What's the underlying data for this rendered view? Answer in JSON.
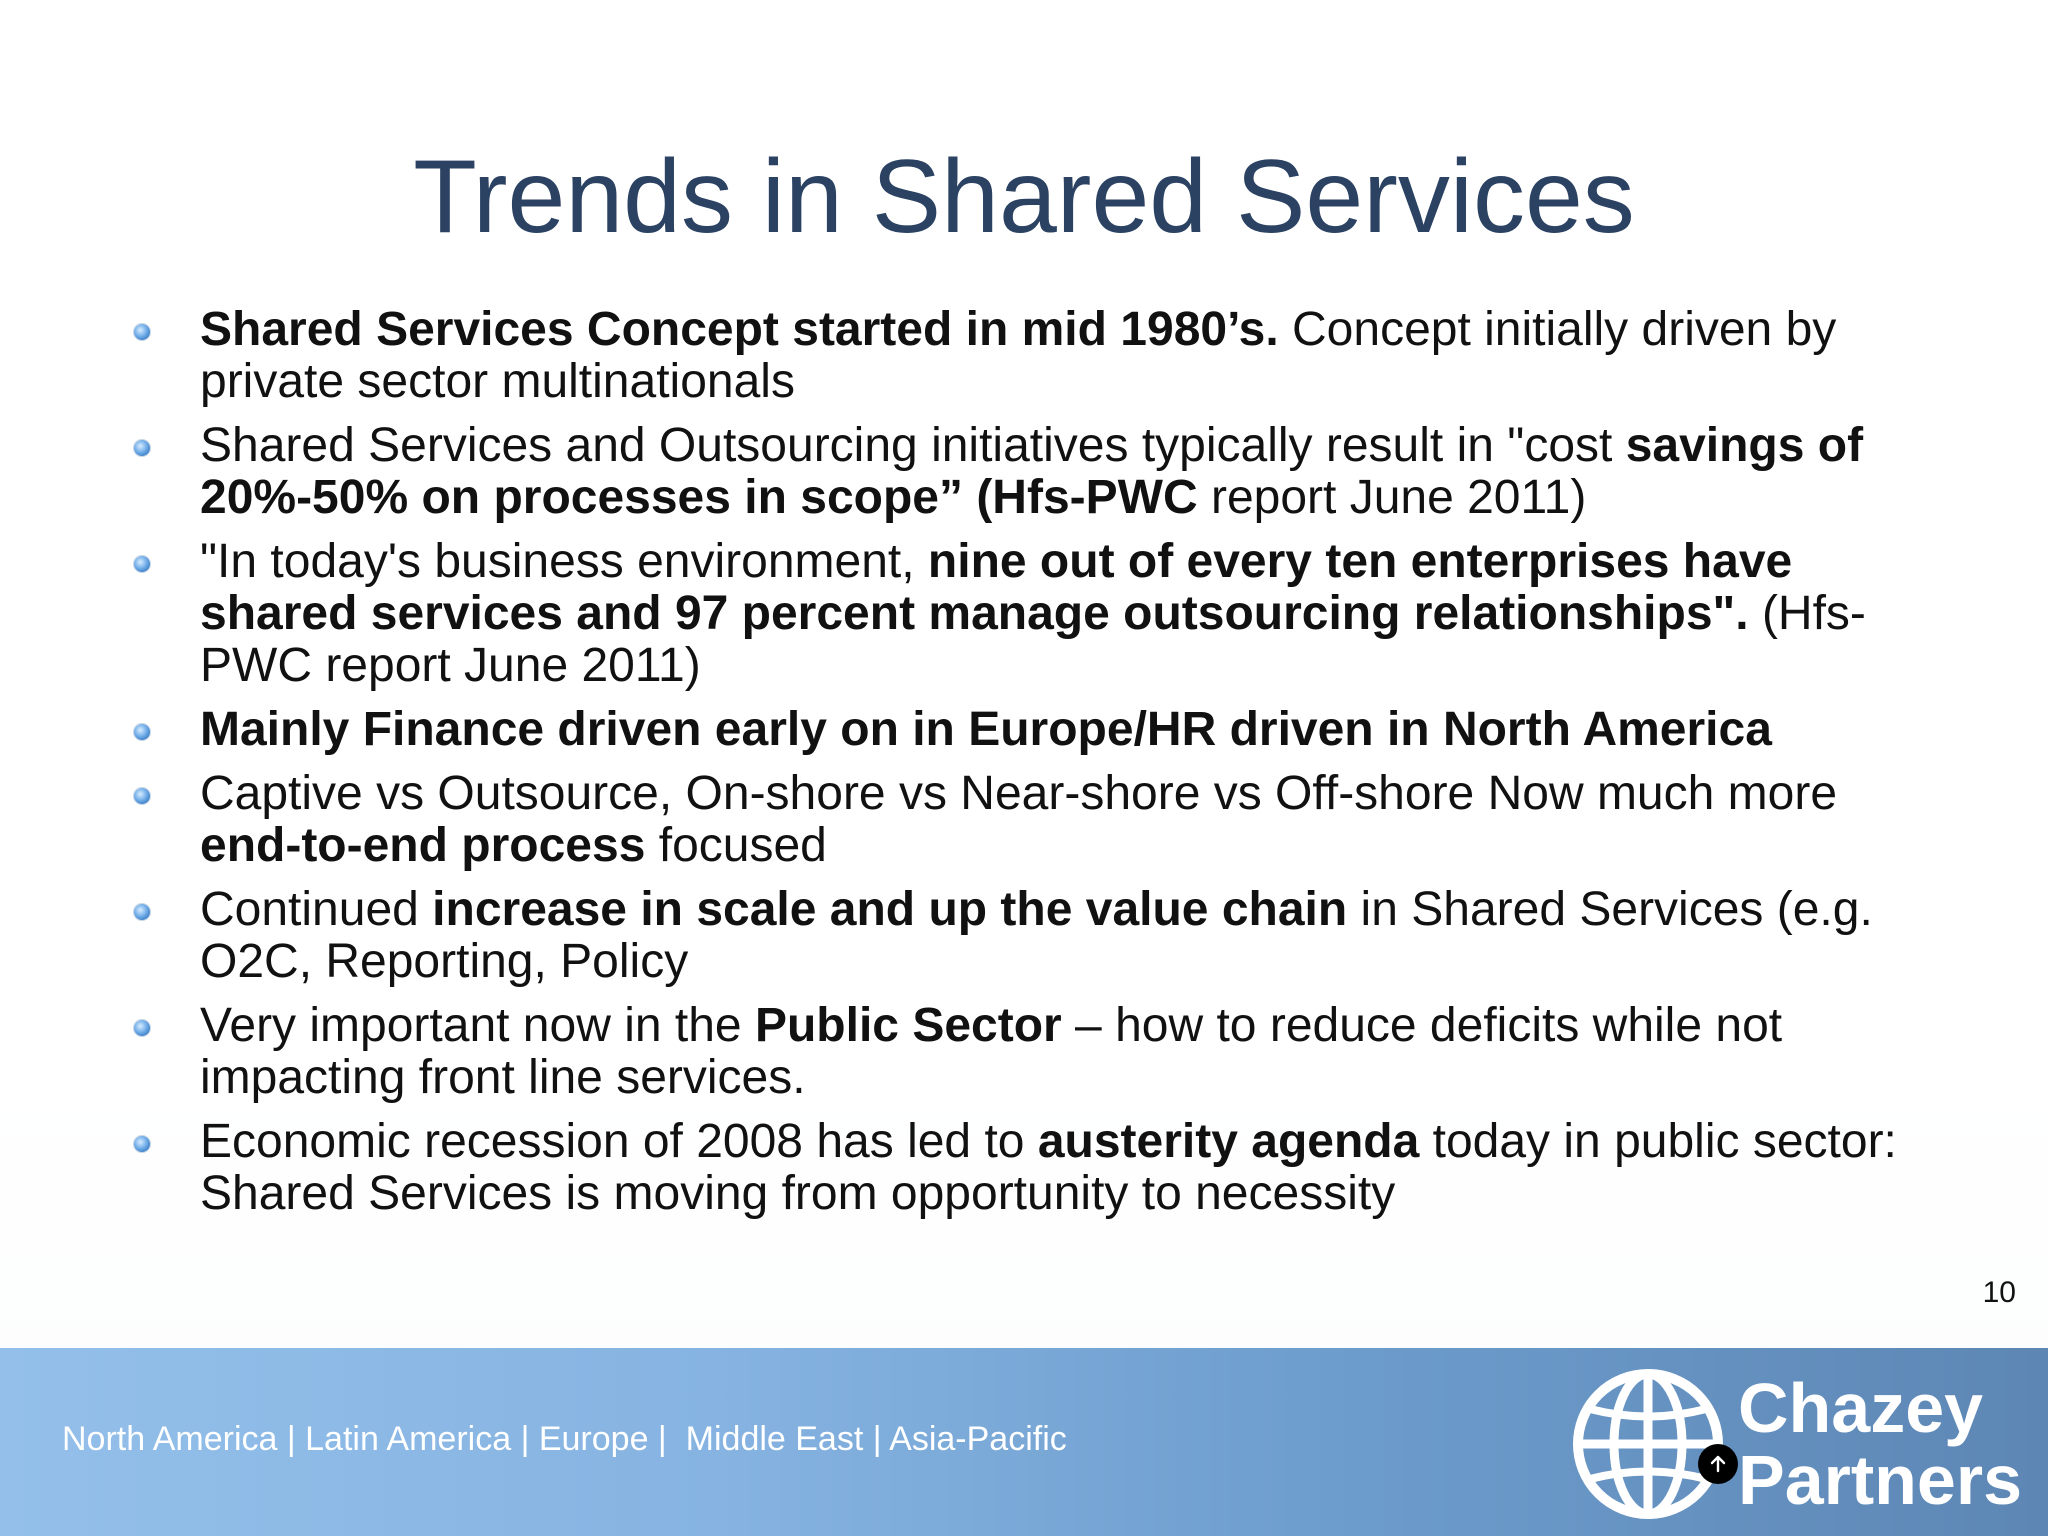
{
  "slide": {
    "title": "Trends in Shared Services",
    "page_number": "10"
  },
  "bullets": [
    {
      "segments": [
        {
          "text": "Shared Services Concept started in mid 1980’s.",
          "bold": true
        },
        {
          "text": " Concept initially driven by private sector multinationals",
          "bold": false
        }
      ]
    },
    {
      "segments": [
        {
          "text": "Shared Services and Outsourcing initiatives typically result in \"cost ",
          "bold": false
        },
        {
          "text": "savings of 20%-50% on processes in scope”  (Hfs-PWC",
          "bold": true
        },
        {
          "text": " report June 2011)",
          "bold": false
        }
      ]
    },
    {
      "segments": [
        {
          "text": "\"In today's business environment, ",
          "bold": false
        },
        {
          "text": "nine out of every ten enterprises have shared services and 97 percent manage outsourcing relationships\".",
          "bold": true
        },
        {
          "text": " (Hfs-PWC report June 2011)",
          "bold": false
        }
      ]
    },
    {
      "segments": [
        {
          "text": "Mainly Finance driven early on in Europe/HR driven in North America",
          "bold": true
        }
      ]
    },
    {
      "segments": [
        {
          "text": "Captive vs Outsource, On-shore vs Near-shore vs Off-shore Now much more ",
          "bold": false
        },
        {
          "text": "end-to-end process",
          "bold": true
        },
        {
          "text": " focused",
          "bold": false
        }
      ]
    },
    {
      "segments": [
        {
          "text": "Continued ",
          "bold": false
        },
        {
          "text": "increase in scale and up the value chain",
          "bold": true
        },
        {
          "text": " in Shared Services (e.g. O2C, Reporting, Policy",
          "bold": false
        }
      ]
    },
    {
      "segments": [
        {
          "text": "Very important now in the ",
          "bold": false
        },
        {
          "text": "Public Sector",
          "bold": true
        },
        {
          "text": " – how to reduce deficits while not impacting front line services.",
          "bold": false
        }
      ]
    },
    {
      "segments": [
        {
          "text": "Economic recession of 2008 has led to ",
          "bold": false
        },
        {
          "text": "austerity agenda",
          "bold": true
        },
        {
          "text": " today in public sector: Shared Services is moving from opportunity to necessity",
          "bold": false
        }
      ]
    }
  ],
  "footer": {
    "regions": "North America | Latin America | Europe |  Middle East | Asia-Pacific",
    "logo_line1": "Chazey",
    "logo_line2": "Partners"
  },
  "icons": {
    "bullet": "blue-sphere-bullet-icon",
    "logo": "globe-icon",
    "badge": "arrow-up-icon"
  },
  "colors": {
    "title": "#2b4263",
    "footer_start": "#93bfea",
    "footer_end": "#5d86b4",
    "bullet": "#3d82c9"
  }
}
